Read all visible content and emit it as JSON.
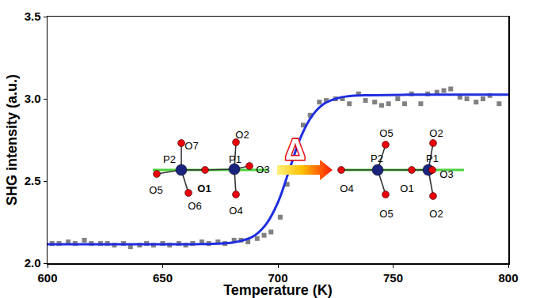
{
  "chart_data": {
    "type": "scatter",
    "x_label": "Temperature (K)",
    "y_label": "SHG intensity (a.u.)",
    "xlim": [
      600,
      800
    ],
    "xticks": [
      600,
      650,
      700,
      750,
      800
    ],
    "ylim": [
      2,
      3.5
    ],
    "yticks": [
      {
        "value": 2,
        "label": "2.0"
      },
      {
        "value": 2.5,
        "label": "2.5"
      },
      {
        "value": 3,
        "label": "3.0"
      },
      {
        "value": 3.5,
        "label": "3.5"
      }
    ],
    "grid": false,
    "series": [
      {
        "type": "scatter",
        "marker": "square",
        "color": "#808080",
        "x": [
          602,
          605,
          609,
          612,
          616,
          619,
          623,
          626,
          629,
          633,
          636,
          640,
          643,
          646,
          650,
          653,
          657,
          660,
          663,
          667,
          670,
          674,
          677,
          681,
          684,
          687,
          691,
          694,
          697,
          701,
          704,
          708,
          711,
          714,
          718,
          721,
          725,
          728,
          731,
          735,
          738,
          742,
          745,
          748,
          752,
          755,
          758,
          762,
          765,
          769,
          772,
          775,
          779,
          782,
          786,
          789,
          792,
          796
        ],
        "values": [
          2.12,
          2.12,
          2.13,
          2.12,
          2.14,
          2.12,
          2.12,
          2.12,
          2.11,
          2.12,
          2.1,
          2.11,
          2.12,
          2.11,
          2.12,
          2.11,
          2.12,
          2.11,
          2.12,
          2.13,
          2.12,
          2.13,
          2.12,
          2.14,
          2.14,
          2.13,
          2.15,
          2.17,
          2.19,
          2.28,
          2.48,
          2.75,
          2.84,
          2.9,
          2.98,
          2.99,
          3.0,
          3.0,
          2.97,
          3.03,
          2.99,
          2.98,
          2.96,
          2.97,
          3.0,
          2.97,
          3.03,
          2.97,
          3.03,
          3.04,
          3.05,
          3.06,
          3.01,
          3.0,
          2.98,
          3.0,
          3.02,
          2.97
        ]
      },
      {
        "type": "line",
        "line_style": "solid",
        "color": "#1f2ee0",
        "x": [
          600,
          650,
          670,
          680,
          685,
          690,
          695,
          700,
          705,
          710,
          715,
          720,
          725,
          730,
          740,
          760,
          800
        ],
        "values": [
          2.115,
          2.115,
          2.117,
          2.125,
          2.14,
          2.17,
          2.24,
          2.37,
          2.57,
          2.77,
          2.9,
          2.97,
          3.0,
          3.015,
          3.022,
          3.025,
          3.025
        ]
      }
    ],
    "annotations": [
      "Δ"
    ],
    "insets": [
      {
        "labels": [
          "P2",
          "P1",
          "O1",
          "O7",
          "O6",
          "O5",
          "O2",
          "O3",
          "O4"
        ]
      },
      {
        "labels": [
          "P2",
          "P1",
          "O1",
          "O4",
          "O5",
          "O5",
          "O2",
          "O2",
          "O3"
        ]
      }
    ]
  }
}
